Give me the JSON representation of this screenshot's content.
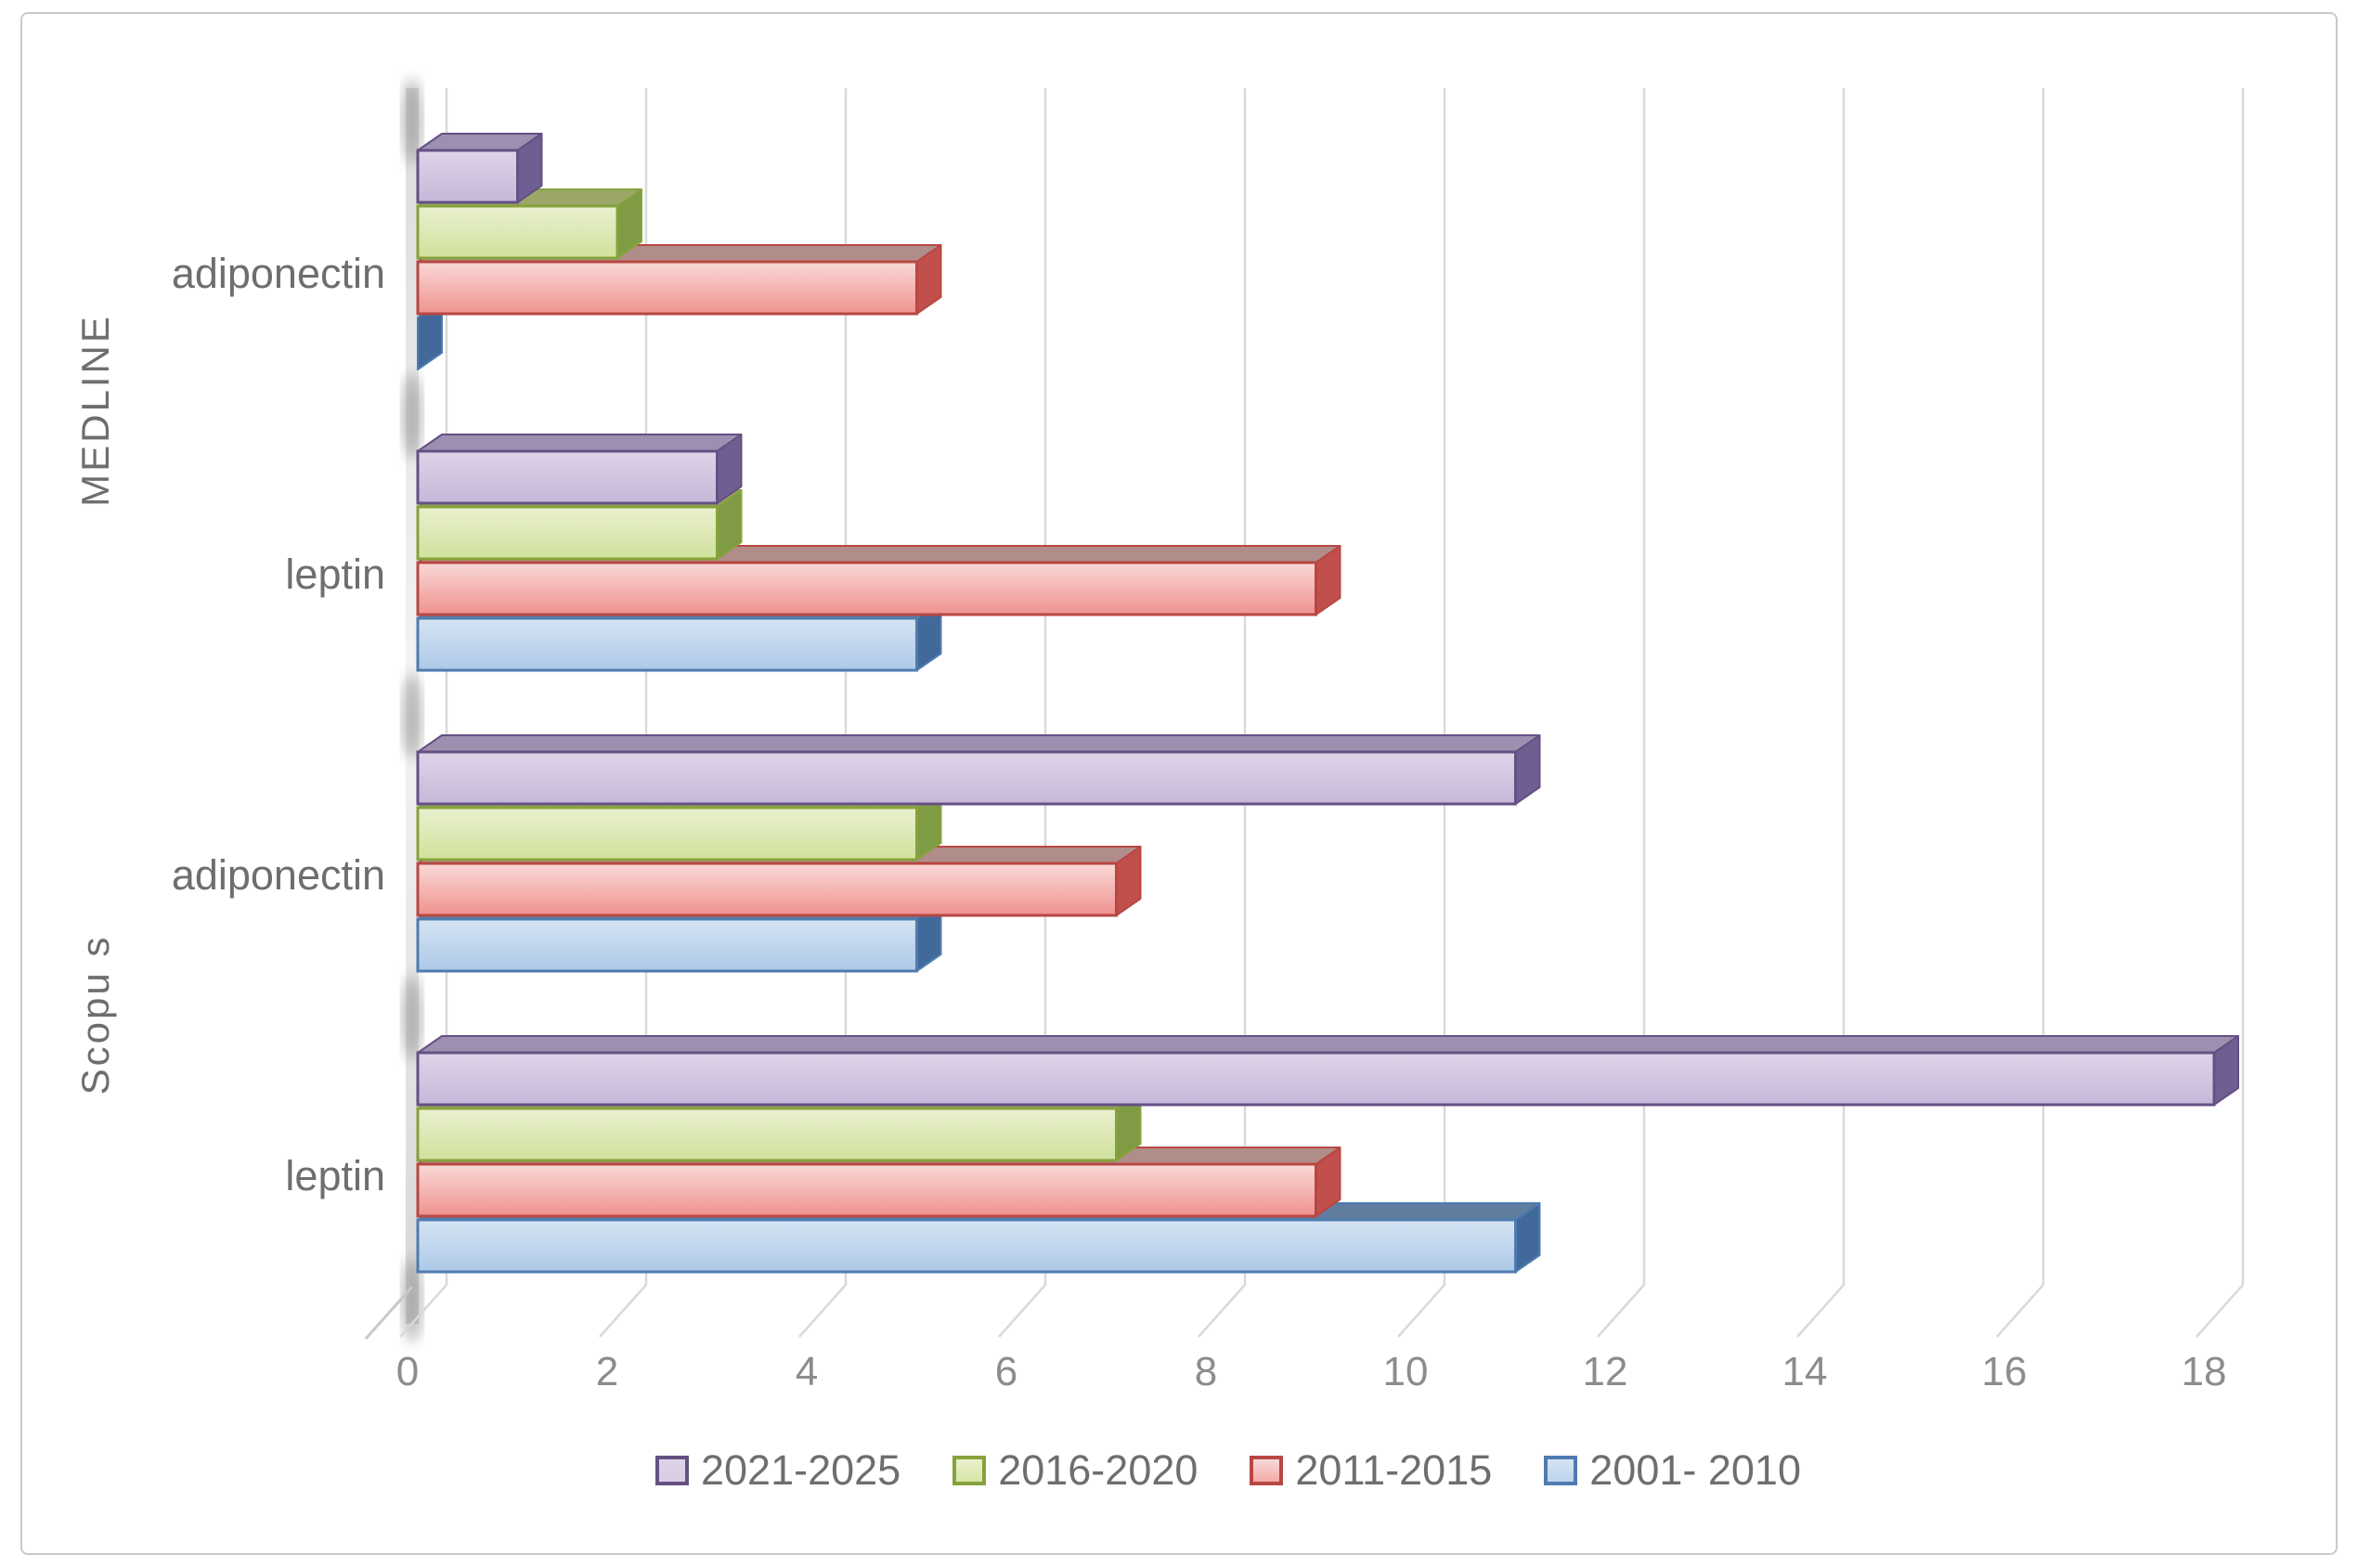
{
  "chart_data": {
    "type": "bar",
    "orientation": "horizontal",
    "style": "3d",
    "title": "",
    "xlabel": "",
    "ylabel": "",
    "xlim": [
      0,
      18
    ],
    "x_ticks": [
      0,
      2,
      4,
      6,
      8,
      10,
      12,
      14,
      16,
      18
    ],
    "grid": true,
    "legend_position": "bottom",
    "axis_groups": [
      {
        "label": "MEDLINE"
      },
      {
        "label": "Scopu s"
      }
    ],
    "categories": [
      {
        "database": "MEDLINE",
        "term": "adiponectin"
      },
      {
        "database": "MEDLINE",
        "term": "leptin"
      },
      {
        "database": "Scopus",
        "term": "adiponectin"
      },
      {
        "database": "Scopus",
        "term": "leptin"
      }
    ],
    "series": [
      {
        "name": "2021-2025",
        "values": [
          1,
          3,
          11,
          18
        ],
        "color": "#8064A2",
        "stroke": "#655084",
        "face_light": "#ded4e9",
        "face_dark": "#c6b7d8",
        "top_face": "#9c8fb0",
        "side_face": "#6f5e92",
        "swatch_fill": "#d9cde4"
      },
      {
        "name": "2016-2020",
        "values": [
          2,
          3,
          5,
          7
        ],
        "color": "#9BBB59",
        "stroke": "#87a23c",
        "face_light": "#eaf0cf",
        "face_dark": "#d0e19c",
        "top_face": "#9aa766",
        "side_face": "#7f9c44",
        "swatch_fill": "#d8e6a8"
      },
      {
        "name": "2011-2015",
        "values": [
          5,
          9,
          7,
          9
        ],
        "color": "#C0504D",
        "stroke": "#b84743",
        "face_light": "#f9d9d7",
        "face_dark": "#ef928f",
        "top_face": "#b18d8a",
        "side_face": "#c14f4b",
        "swatch_fill": "#f3a9a6"
      },
      {
        "name": "2001- 2010",
        "values": [
          0,
          5,
          5,
          11
        ],
        "color": "#4F81BD",
        "stroke": "#4f7cb0",
        "face_light": "#d5e4f3",
        "face_dark": "#adc9e8",
        "top_face": "#5f7d9f",
        "side_face": "#41699a",
        "swatch_fill": "#bcd4ec"
      }
    ],
    "gridline_color": "#d9d9d9",
    "tick_color": "#8c8c8c",
    "label_color": "#6e6e6e"
  }
}
